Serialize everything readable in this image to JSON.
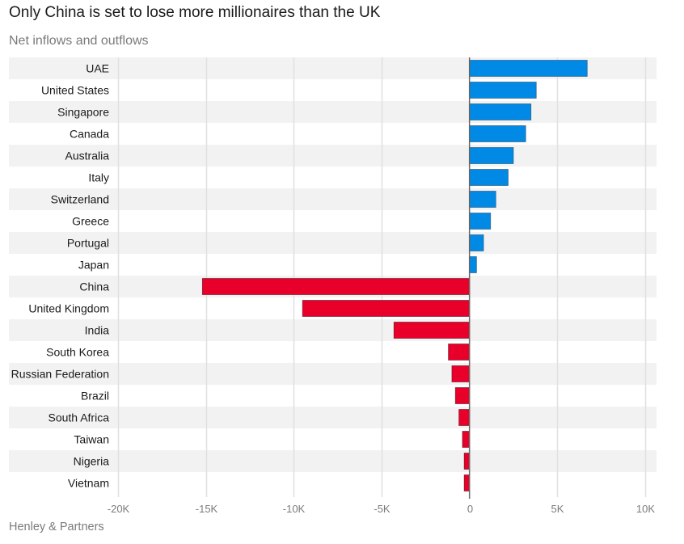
{
  "title": "Only China is set to lose more millionaires than the UK",
  "subtitle": "Net inflows and outflows",
  "source": "Henley & Partners",
  "colors": {
    "positive": "#008ae6",
    "negative": "#e8002a",
    "row_band": "#f2f2f2",
    "grid": "#e0e0e0",
    "zero_line": "#666666"
  },
  "chart_data": {
    "type": "bar",
    "orientation": "horizontal",
    "title": "Only China is set to lose more millionaires than the UK",
    "subtitle": "Net inflows and outflows",
    "xlabel": "",
    "ylabel": "",
    "xlim": [
      -20000,
      10000
    ],
    "x_ticks": [
      -20000,
      -15000,
      -10000,
      -5000,
      0,
      5000,
      10000
    ],
    "x_tick_labels": [
      "-20K",
      "-15K",
      "-10K",
      "-5K",
      "0",
      "5K",
      "10K"
    ],
    "grid": true,
    "legend": "none",
    "categories": [
      "UAE",
      "United States",
      "Singapore",
      "Canada",
      "Australia",
      "Italy",
      "Switzerland",
      "Greece",
      "Portugal",
      "Japan",
      "China",
      "United Kingdom",
      "India",
      "South Korea",
      "Russian Federation",
      "Brazil",
      "South Africa",
      "Taiwan",
      "Nigeria",
      "Vietnam"
    ],
    "values": [
      6700,
      3800,
      3500,
      3200,
      2500,
      2200,
      1500,
      1200,
      800,
      400,
      -15200,
      -9500,
      -4300,
      -1200,
      -1000,
      -800,
      -600,
      -400,
      -300,
      -300
    ],
    "source": "Henley & Partners"
  }
}
